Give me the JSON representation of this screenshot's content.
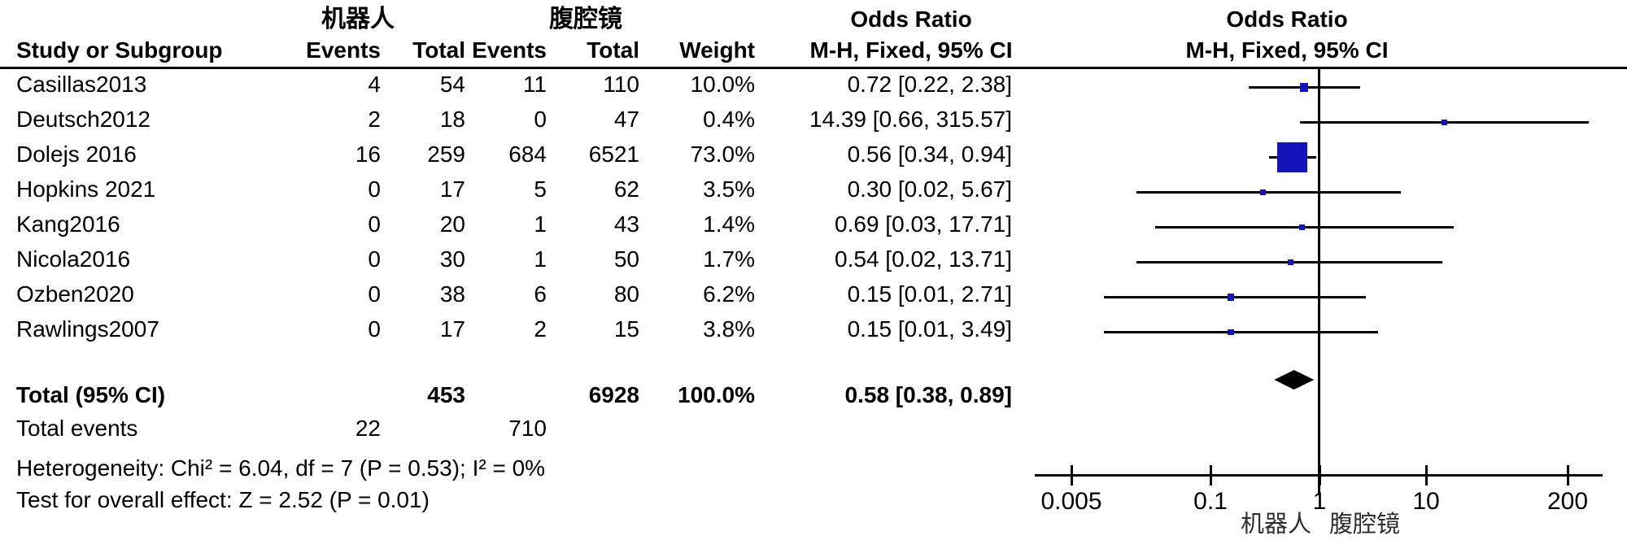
{
  "header": {
    "group1": "机器人",
    "group2": "腹腔镜",
    "study_col": "Study or Subgroup",
    "events_col": "Events",
    "total_col": "Total",
    "weight_col": "Weight",
    "or_title": "Odds Ratio",
    "or_subtitle": "M-H, Fixed, 95% CI",
    "plot_title": "Odds Ratio",
    "plot_subtitle": "M-H, Fixed, 95% CI"
  },
  "rows": [
    {
      "study": "Casillas2013",
      "events1": "4",
      "total1": "54",
      "events2": "11",
      "total2": "110",
      "weight": "10.0%",
      "or_ci": "0.72 [0.22, 2.38]"
    },
    {
      "study": "Deutsch2012",
      "events1": "2",
      "total1": "18",
      "events2": "0",
      "total2": "47",
      "weight": "0.4%",
      "or_ci": "14.39 [0.66, 315.57]"
    },
    {
      "study": "Dolejs 2016",
      "events1": "16",
      "total1": "259",
      "events2": "684",
      "total2": "6521",
      "weight": "73.0%",
      "or_ci": "0.56 [0.34, 0.94]"
    },
    {
      "study": "Hopkins 2021",
      "events1": "0",
      "total1": "17",
      "events2": "5",
      "total2": "62",
      "weight": "3.5%",
      "or_ci": "0.30 [0.02, 5.67]"
    },
    {
      "study": "Kang2016",
      "events1": "0",
      "total1": "20",
      "events2": "1",
      "total2": "43",
      "weight": "1.4%",
      "or_ci": "0.69 [0.03, 17.71]"
    },
    {
      "study": "Nicola2016",
      "events1": "0",
      "total1": "30",
      "events2": "1",
      "total2": "50",
      "weight": "1.7%",
      "or_ci": "0.54 [0.02, 13.71]"
    },
    {
      "study": "Ozben2020",
      "events1": "0",
      "total1": "38",
      "events2": "6",
      "total2": "80",
      "weight": "6.2%",
      "or_ci": "0.15 [0.01, 2.71]"
    },
    {
      "study": "Rawlings2007",
      "events1": "0",
      "total1": "17",
      "events2": "2",
      "total2": "15",
      "weight": "3.8%",
      "or_ci": "0.15 [0.01, 3.49]"
    }
  ],
  "totals": {
    "label": "Total (95% CI)",
    "total1": "453",
    "total2": "6928",
    "weight": "100.0%",
    "or_ci": "0.58 [0.38, 0.89]",
    "events_label": "Total events",
    "events1": "22",
    "events2": "710"
  },
  "footer": {
    "heterogeneity": "Heterogeneity: Chi² = 6.04, df = 7 (P = 0.53); I² = 0%",
    "overall_effect": "Test for overall effect: Z = 2.52 (P = 0.01)"
  },
  "chart_data": {
    "type": "forest",
    "effect_measure": "Odds Ratio (M-H, Fixed, 95% CI)",
    "x_axis": {
      "scale": "log",
      "ticks": [
        0.005,
        0.1,
        1,
        10,
        200
      ],
      "tick_labels": [
        "0.005",
        "0.1",
        "1",
        "10",
        "200"
      ]
    },
    "studies": [
      {
        "name": "Casillas2013",
        "or": 0.72,
        "ci_low": 0.22,
        "ci_high": 2.38,
        "weight_pct": 10.0
      },
      {
        "name": "Deutsch2012",
        "or": 14.39,
        "ci_low": 0.66,
        "ci_high": 315.57,
        "weight_pct": 0.4
      },
      {
        "name": "Dolejs 2016",
        "or": 0.56,
        "ci_low": 0.34,
        "ci_high": 0.94,
        "weight_pct": 73.0
      },
      {
        "name": "Hopkins 2021",
        "or": 0.3,
        "ci_low": 0.02,
        "ci_high": 5.67,
        "weight_pct": 3.5
      },
      {
        "name": "Kang2016",
        "or": 0.69,
        "ci_low": 0.03,
        "ci_high": 17.71,
        "weight_pct": 1.4
      },
      {
        "name": "Nicola2016",
        "or": 0.54,
        "ci_low": 0.02,
        "ci_high": 13.71,
        "weight_pct": 1.7
      },
      {
        "name": "Ozben2020",
        "or": 0.15,
        "ci_low": 0.01,
        "ci_high": 2.71,
        "weight_pct": 6.2
      },
      {
        "name": "Rawlings2007",
        "or": 0.15,
        "ci_low": 0.01,
        "ci_high": 3.49,
        "weight_pct": 3.8
      }
    ],
    "total": {
      "or": 0.58,
      "ci_low": 0.38,
      "ci_high": 0.89
    },
    "favours_left_label": "机器人",
    "favours_right_label": "腹腔镜",
    "marker_color": "#1414B8",
    "diamond_color": "#000000"
  }
}
